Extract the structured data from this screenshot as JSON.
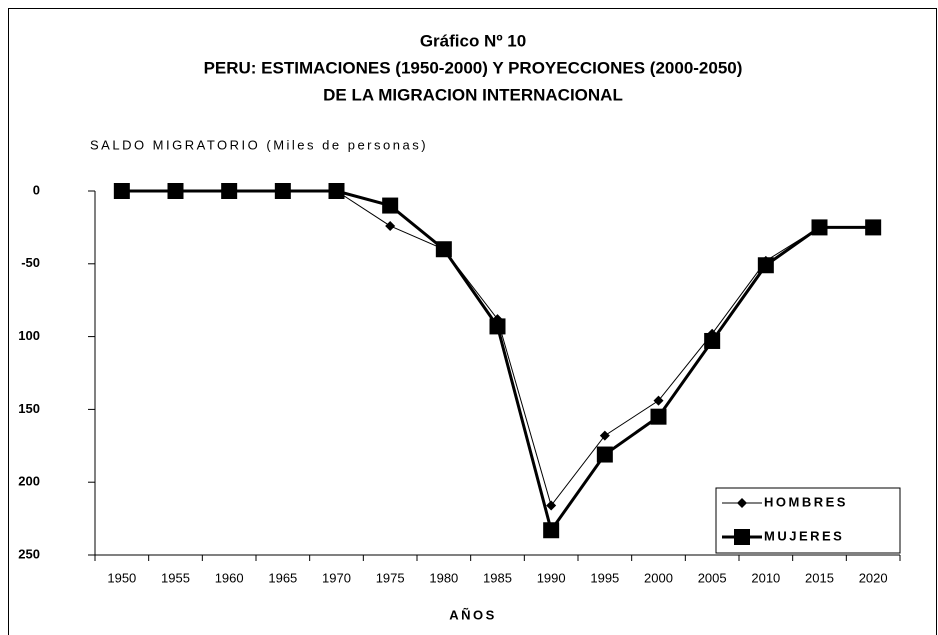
{
  "chart_data": {
    "type": "line",
    "title": [
      "Gráfico Nº 10",
      "PERU: ESTIMACIONES (1950-2000) Y PROYECCIONES (2000-2050)",
      "DE LA MIGRACION INTERNACIONAL"
    ],
    "y_label": "SALDO MIGRATORIO (Miles de personas)",
    "x_label": "AÑOS",
    "categories": [
      "1950",
      "1955",
      "1960",
      "1965",
      "1970",
      "1975",
      "1980",
      "1985",
      "1990",
      "1995",
      "2000",
      "2005",
      "2010",
      "2015",
      "2020"
    ],
    "series": [
      {
        "name": "HOMBRES",
        "color": "#000000",
        "marker": "diamond",
        "values": [
          0,
          0,
          0,
          0,
          0,
          -24,
          -40,
          -88,
          -216,
          -168,
          -144,
          -98,
          -48,
          -25,
          -25
        ]
      },
      {
        "name": "MUJERES",
        "color": "#000000",
        "marker": "square",
        "values": [
          0,
          0,
          0,
          0,
          0,
          -10,
          -40,
          -93,
          -233,
          -181,
          -155,
          -103,
          -51,
          -25,
          -25
        ]
      }
    ],
    "ylim": [
      -250,
      0
    ],
    "yticks": [
      0,
      -50,
      {
        "value": -100,
        "label": "100"
      },
      {
        "value": -150,
        "label": "150"
      },
      {
        "value": -200,
        "label": "200"
      },
      {
        "value": -250,
        "label": "250"
      }
    ],
    "legend": "lower right"
  }
}
